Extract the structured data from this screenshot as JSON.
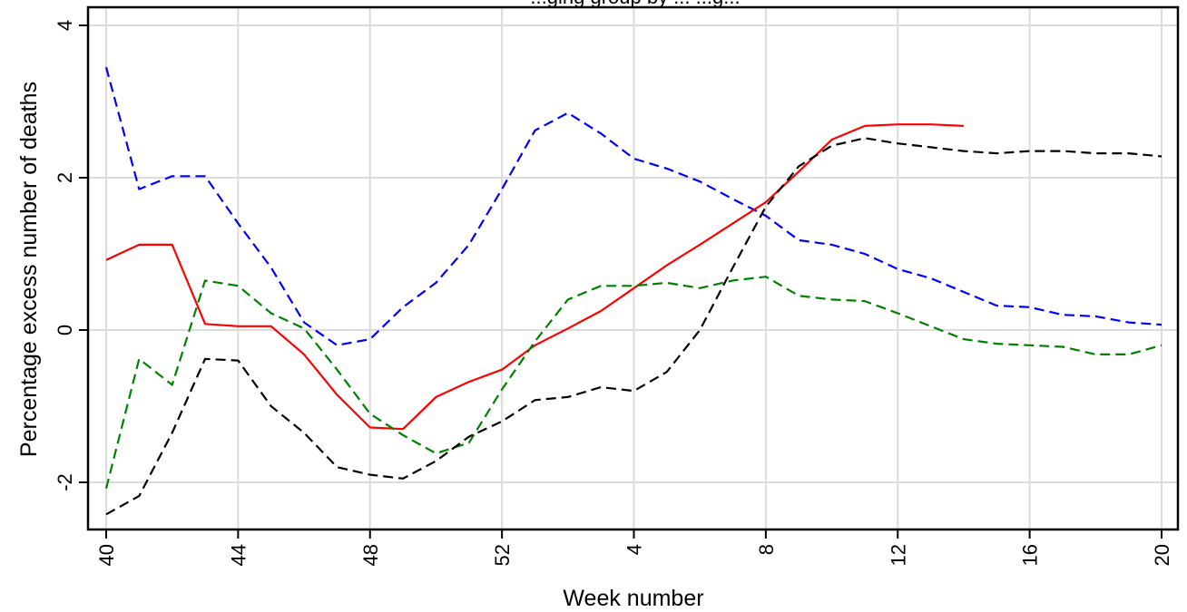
{
  "chart_data": {
    "type": "line",
    "title_fragment": "...ging group by ... ...g...",
    "xlabel": "Week number",
    "ylabel": "Percentage excess number of deaths",
    "x_ticks": [
      "40",
      "44",
      "48",
      "52",
      "4",
      "8",
      "12",
      "16",
      "20"
    ],
    "y_ticks": [
      "-2",
      "0",
      "2",
      "4"
    ],
    "ylim": [
      -2.6,
      4.2
    ],
    "x_index_range": [
      0,
      32
    ],
    "grid": true,
    "x_index_note": "index 0 = week 40, index 13 = week 1 of following year",
    "series": [
      {
        "color": "#0000ff",
        "style": "dashed",
        "values": [
          3.45,
          1.85,
          2.02,
          2.02,
          1.4,
          0.82,
          0.1,
          -0.2,
          -0.12,
          0.3,
          0.62,
          1.12,
          1.85,
          2.62,
          2.85,
          2.58,
          2.25,
          2.12,
          1.95,
          1.72,
          1.5,
          1.18,
          1.12,
          1.0,
          0.8,
          0.68,
          0.5,
          0.32,
          0.3,
          0.2,
          0.18,
          0.1,
          0.07
        ]
      },
      {
        "color": "#ff0000",
        "style": "solid",
        "values": [
          0.92,
          1.12,
          1.12,
          0.08,
          0.05,
          0.05,
          -0.32,
          -0.85,
          -1.28,
          -1.3,
          -0.88,
          -0.68,
          -0.52,
          -0.2,
          0.02,
          0.25,
          0.55,
          0.85,
          1.12,
          1.4,
          1.68,
          2.08,
          2.5,
          2.68,
          2.7,
          2.7,
          2.68
        ]
      },
      {
        "color": "#008000",
        "style": "dashed",
        "values": [
          -2.08,
          -0.38,
          -0.72,
          0.65,
          0.58,
          0.22,
          0.02,
          -0.52,
          -1.1,
          -1.38,
          -1.62,
          -1.48,
          -0.78,
          -0.15,
          0.4,
          0.58,
          0.58,
          0.62,
          0.55,
          0.65,
          0.7,
          0.45,
          0.4,
          0.38,
          0.22,
          0.05,
          -0.12,
          -0.18,
          -0.2,
          -0.22,
          -0.32,
          -0.32,
          -0.2
        ]
      },
      {
        "color": "#000000",
        "style": "dashed",
        "values": [
          -2.42,
          -2.18,
          -1.35,
          -0.38,
          -0.4,
          -1.0,
          -1.35,
          -1.8,
          -1.9,
          -1.95,
          -1.72,
          -1.4,
          -1.2,
          -0.92,
          -0.88,
          -0.75,
          -0.8,
          -0.55,
          0.0,
          0.82,
          1.62,
          2.15,
          2.42,
          2.52,
          2.45,
          2.4,
          2.35,
          2.32,
          2.35,
          2.35,
          2.32,
          2.32,
          2.28
        ]
      }
    ]
  }
}
